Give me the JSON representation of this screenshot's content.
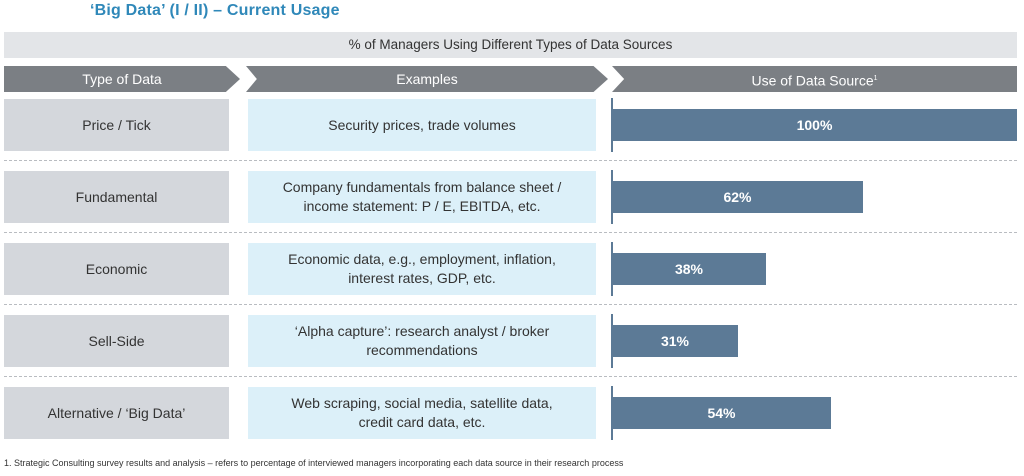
{
  "title": "‘Big Data’ (I / II) – Current Usage",
  "banner": "% of Managers Using Different Types of Data Sources",
  "headers": {
    "type": "Type of Data",
    "examples": "Examples",
    "use": "Use of Data Source",
    "use_sup": "1"
  },
  "footnote": "1. Strategic Consulting survey results and analysis – refers to percentage of interviewed managers incorporating each data source in their research process",
  "chart_data": {
    "type": "bar",
    "title": "% of Managers Using Different Types of Data Sources",
    "categories": [
      "Price / Tick",
      "Fundamental",
      "Economic",
      "Sell-Side",
      "Alternative / ‘Big Data’"
    ],
    "examples": [
      [
        "Security prices, trade volumes"
      ],
      [
        "Company fundamentals from balance sheet /",
        "income statement: P / E, EBITDA, etc."
      ],
      [
        "Economic data, e.g., employment, inflation,",
        "interest rates, GDP, etc."
      ],
      [
        "‘Alpha capture’: research analyst / broker",
        "recommendations"
      ],
      [
        "Web scraping, social media, satellite data,",
        "credit card data, etc."
      ]
    ],
    "values": [
      100,
      62,
      38,
      31,
      54
    ],
    "value_labels": [
      "100%",
      "62%",
      "38%",
      "31%",
      "54%"
    ],
    "ylim": [
      0,
      100
    ],
    "bar_color": "#5c7a96"
  }
}
